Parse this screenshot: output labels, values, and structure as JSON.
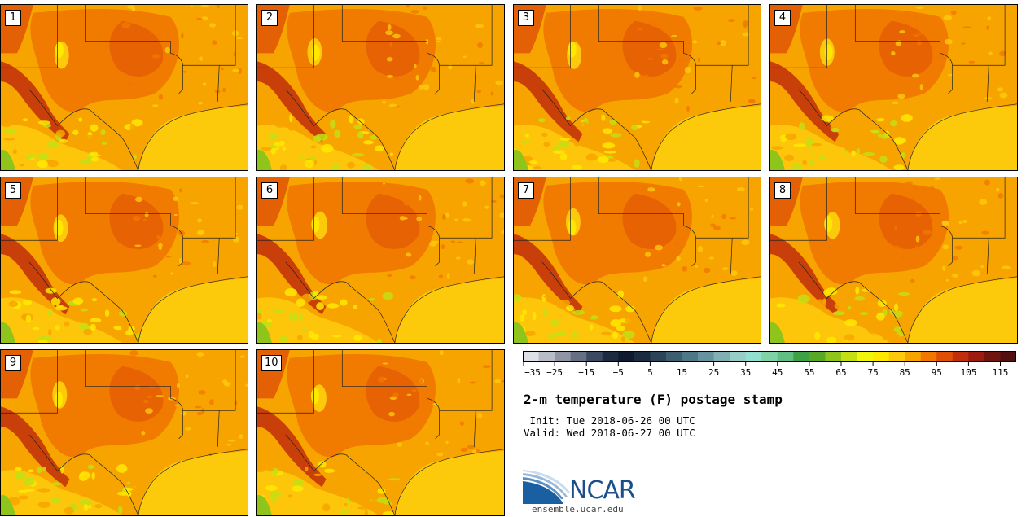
{
  "panels": [
    {
      "label": "1"
    },
    {
      "label": "2"
    },
    {
      "label": "3"
    },
    {
      "label": "4"
    },
    {
      "label": "5"
    },
    {
      "label": "6"
    },
    {
      "label": "7"
    },
    {
      "label": "8"
    },
    {
      "label": "9"
    },
    {
      "label": "10"
    }
  ],
  "colorbar": {
    "min": -35,
    "max": 120,
    "step": 5,
    "tick_labels": [
      "−35",
      "−25",
      "−15",
      "−5",
      "5",
      "15",
      "25",
      "35",
      "45",
      "55",
      "65",
      "75",
      "85",
      "95",
      "105",
      "115"
    ],
    "colors": [
      "#dde0e6",
      "#b8bcc7",
      "#8f95a5",
      "#667083",
      "#3c4a61",
      "#1d2a3f",
      "#0f1a2e",
      "#1b2c40",
      "#2b4457",
      "#3d5e6f",
      "#4f7886",
      "#66939d",
      "#80b0b4",
      "#96cdc7",
      "#92dfcf",
      "#7fd1a8",
      "#61bf83",
      "#3ea145",
      "#58a928",
      "#8fc41b",
      "#c3df14",
      "#eff50b",
      "#ffe800",
      "#fdca0b",
      "#f7a400",
      "#f07800",
      "#df4f06",
      "#c02e0b",
      "#9c1c10",
      "#71160f",
      "#521010"
    ]
  },
  "title": "2-m temperature (F) postage stamp",
  "init_line": " Init: Tue 2018-06-26 00 UTC",
  "valid_line": "Valid: Wed 2018-06-27 00 UTC",
  "logo_text": "NCAR",
  "url": "ensemble.ucar.edu"
}
